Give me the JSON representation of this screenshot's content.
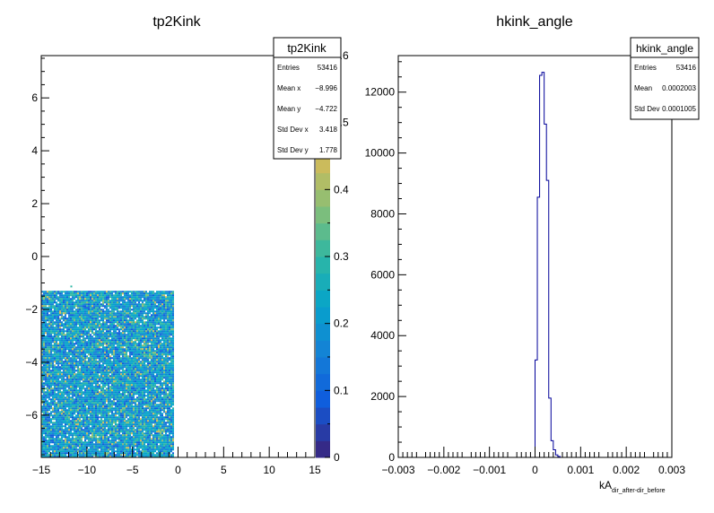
{
  "chart_data": [
    {
      "type": "heatmap",
      "title": "tp2Kink",
      "xlim": [
        -15,
        15
      ],
      "ylim": [
        -7.6,
        7.6
      ],
      "x_ticks": [
        "−15",
        "−10",
        "−5",
        "0",
        "5",
        "10",
        "15"
      ],
      "y_ticks": [
        "−6",
        "−4",
        "−2",
        "0",
        "2",
        "4",
        "6"
      ],
      "x_tick_values": [
        -15,
        -10,
        -5,
        0,
        5,
        10,
        15
      ],
      "y_tick_values": [
        -6,
        -4,
        -2,
        0,
        2,
        4,
        6
      ],
      "filled_region": {
        "x": [
          -15,
          -0.6
        ],
        "y": [
          -7.6,
          -1.3
        ]
      },
      "stray_points": [
        [
          -11.8,
          -1.1
        ]
      ],
      "color_scale": {
        "min": 0,
        "max": 0.6,
        "tick_values": [
          0,
          0.1,
          0.2,
          0.3,
          0.4,
          0.5,
          0.6
        ],
        "tick_labels": [
          "0",
          "0.1",
          "0.2",
          "0.3",
          "0.4",
          "0.5",
          "0.6"
        ],
        "palette": [
          "#352a87",
          "#0f5cdd",
          "#1481d6",
          "#06a4ca",
          "#2eb7a4",
          "#87bf77",
          "#d1bb59",
          "#fec832",
          "#f9fb0e"
        ]
      },
      "stats": {
        "name": "tp2Kink",
        "rows": [
          {
            "label": "Entries",
            "value": "53416"
          },
          {
            "label": "Mean x",
            "value": "−8.996"
          },
          {
            "label": "Mean y",
            "value": "−4.722"
          },
          {
            "label": "Std Dev x",
            "value": "3.418"
          },
          {
            "label": "Std Dev y",
            "value": "1.778"
          }
        ]
      }
    },
    {
      "type": "line",
      "title": "hkink_angle",
      "xlabel": "kA",
      "xlabel_sub": "dir_after-dir_before",
      "xlim": [
        -0.003,
        0.003
      ],
      "ylim": [
        0,
        13200
      ],
      "x_ticks": [
        "−0.003",
        "−0.002",
        "−0.001",
        "0",
        "0.001",
        "0.002",
        "0.003"
      ],
      "x_tick_values": [
        -0.003,
        -0.002,
        -0.001,
        0,
        0.001,
        0.002,
        0.003
      ],
      "y_ticks": [
        "0",
        "2000",
        "4000",
        "6000",
        "8000",
        "10000",
        "12000"
      ],
      "y_tick_values": [
        0,
        2000,
        4000,
        6000,
        8000,
        10000,
        12000
      ],
      "bin_width": 5e-05,
      "bins": [
        {
          "x": 0.0,
          "y": 3200
        },
        {
          "x": 5e-05,
          "y": 8550
        },
        {
          "x": 0.0001,
          "y": 12550
        },
        {
          "x": 0.00015,
          "y": 12650
        },
        {
          "x": 0.0002,
          "y": 10950
        },
        {
          "x": 0.00025,
          "y": 9100
        },
        {
          "x": 0.0003,
          "y": 1950
        },
        {
          "x": 0.00035,
          "y": 550
        },
        {
          "x": 0.0004,
          "y": 250
        },
        {
          "x": 0.00045,
          "y": 80
        },
        {
          "x": 0.0005,
          "y": 30
        }
      ],
      "line_color": "#000099",
      "stats": {
        "name": "hkink_angle",
        "rows": [
          {
            "label": "Entries",
            "value": "53416"
          },
          {
            "label": "Mean",
            "value": "0.0002003"
          },
          {
            "label": "Std Dev",
            "value": "0.0001005"
          }
        ]
      }
    }
  ]
}
